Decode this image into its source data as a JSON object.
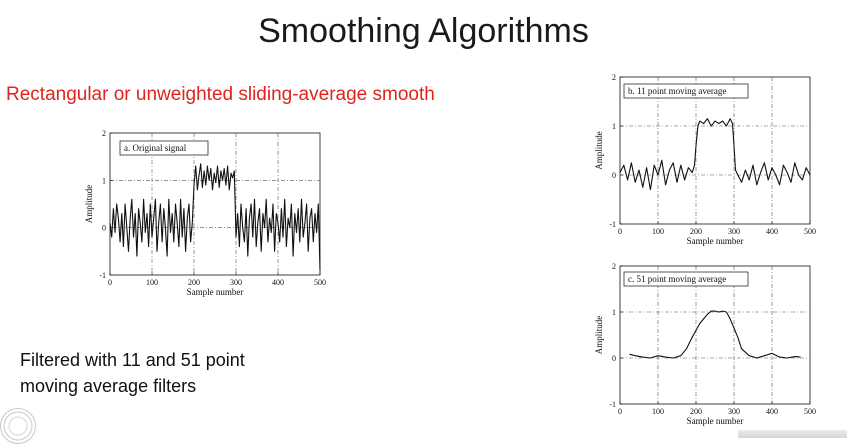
{
  "slide": {
    "title": "Smoothing Algorithms",
    "subtitle": "Rectangular or unweighted sliding-average smooth",
    "caption_lines": [
      "Filtered with 11 and 51 point",
      "moving average filters"
    ]
  },
  "colors": {
    "subtitle": "#e0241d",
    "title": "#1a1a1a",
    "trace": "#111111"
  },
  "chart_data": [
    {
      "type": "line",
      "legend": "a.  Original signal",
      "xlabel": "Sample number",
      "ylabel": "Amplitude",
      "xlim": [
        0,
        500
      ],
      "ylim": [
        -1,
        2
      ],
      "xticks": [
        "0",
        "100",
        "200",
        "300",
        "400",
        "500"
      ],
      "yticks": [
        "-1",
        "0",
        "1",
        "2"
      ],
      "grid": "dashed-dot",
      "series": [
        {
          "x": [
            0,
            4,
            8,
            12,
            16,
            20,
            24,
            28,
            32,
            36,
            40,
            44,
            48,
            52,
            56,
            60,
            64,
            68,
            72,
            76,
            80,
            84,
            88,
            92,
            96,
            100,
            104,
            108,
            112,
            116,
            120,
            124,
            128,
            132,
            136,
            140,
            144,
            148,
            152,
            156,
            160,
            164,
            168,
            172,
            176,
            180,
            184,
            188,
            192,
            196,
            200,
            204,
            208,
            212,
            216,
            220,
            224,
            228,
            232,
            236,
            240,
            244,
            248,
            252,
            256,
            260,
            264,
            268,
            272,
            276,
            280,
            284,
            288,
            292,
            296,
            300,
            304,
            308,
            312,
            316,
            320,
            324,
            328,
            332,
            336,
            340,
            344,
            348,
            352,
            356,
            360,
            364,
            368,
            372,
            376,
            380,
            384,
            388,
            392,
            396,
            400,
            404,
            408,
            412,
            416,
            420,
            424,
            428,
            432,
            436,
            440,
            444,
            448,
            452,
            456,
            460,
            464,
            468,
            472,
            476,
            480,
            484,
            488,
            492,
            496,
            500
          ],
          "y": [
            0.1,
            -0.2,
            0.4,
            -0.1,
            0.5,
            0.2,
            -0.3,
            0.3,
            -0.4,
            0.5,
            0.0,
            -0.5,
            0.2,
            0.6,
            -0.2,
            0.3,
            -0.6,
            0.4,
            0.1,
            -0.3,
            0.6,
            -0.1,
            0.3,
            -0.4,
            0.5,
            -0.2,
            0.2,
            0.6,
            -0.5,
            0.1,
            0.5,
            -0.3,
            0.4,
            0.0,
            -0.6,
            0.6,
            -0.1,
            0.3,
            -0.3,
            0.5,
            0.1,
            -0.4,
            0.6,
            -0.2,
            0.4,
            -0.5,
            0.2,
            0.5,
            -0.3,
            0.1,
            0.9,
            1.3,
            0.8,
            1.1,
            1.35,
            0.85,
            1.2,
            0.9,
            1.3,
            1.0,
            1.25,
            0.8,
            1.15,
            0.95,
            1.3,
            0.85,
            1.2,
            1.0,
            1.25,
            0.9,
            1.3,
            0.8,
            1.15,
            1.05,
            1.2,
            -0.2,
            0.3,
            -0.4,
            0.5,
            0.0,
            -0.3,
            0.4,
            -0.6,
            0.2,
            0.5,
            -0.2,
            0.6,
            -0.4,
            0.1,
            0.4,
            -0.5,
            0.3,
            0.0,
            0.6,
            -0.3,
            0.2,
            -0.1,
            0.5,
            -0.5,
            0.3,
            0.1,
            -0.3,
            0.4,
            -0.2,
            0.6,
            -0.4,
            0.2,
            0.0,
            0.5,
            -0.6,
            0.3,
            -0.1,
            0.4,
            -0.3,
            0.6,
            -0.2,
            0.1,
            0.5,
            -0.5,
            0.2,
            0.4,
            -0.3,
            0.3,
            -0.1,
            0.5,
            -0.9
          ]
        }
      ]
    },
    {
      "type": "line",
      "legend": "b.  11 point moving average",
      "xlabel": "Sample number",
      "ylabel": "Amplitude",
      "xlim": [
        0,
        500
      ],
      "ylim": [
        -1,
        2
      ],
      "xticks": [
        "0",
        "100",
        "200",
        "300",
        "400",
        "500"
      ],
      "yticks": [
        "-1",
        "0",
        "1",
        "2"
      ],
      "grid": "dashed-dot",
      "series": [
        {
          "x": [
            0,
            10,
            20,
            30,
            40,
            50,
            60,
            70,
            80,
            90,
            100,
            110,
            120,
            130,
            140,
            150,
            160,
            170,
            180,
            190,
            196,
            200,
            205,
            210,
            220,
            230,
            240,
            250,
            260,
            270,
            280,
            290,
            296,
            300,
            304,
            310,
            320,
            330,
            340,
            350,
            360,
            370,
            380,
            390,
            400,
            410,
            420,
            430,
            440,
            450,
            460,
            470,
            480,
            490,
            500
          ],
          "y": [
            0.05,
            0.2,
            -0.1,
            0.25,
            -0.15,
            0.1,
            -0.25,
            0.15,
            -0.3,
            0.2,
            0.0,
            0.3,
            -0.2,
            0.1,
            0.25,
            -0.15,
            0.2,
            -0.1,
            0.15,
            0.05,
            0.2,
            0.6,
            1.0,
            1.1,
            1.05,
            1.15,
            1.0,
            1.1,
            1.05,
            1.1,
            1.0,
            1.15,
            1.05,
            0.6,
            0.1,
            0.0,
            -0.15,
            0.1,
            -0.1,
            0.2,
            -0.2,
            0.05,
            0.25,
            -0.1,
            0.15,
            0.0,
            -0.2,
            0.2,
            0.05,
            -0.15,
            0.25,
            0.0,
            -0.1,
            0.15,
            0.0
          ]
        }
      ]
    },
    {
      "type": "line",
      "legend": "c.  51 point moving average",
      "xlabel": "Sample number",
      "ylabel": "Amplitude",
      "xlim": [
        0,
        500
      ],
      "ylim": [
        -1,
        2
      ],
      "xticks": [
        "0",
        "100",
        "200",
        "300",
        "400",
        "500"
      ],
      "yticks": [
        "-1",
        "0",
        "1",
        "2"
      ],
      "grid": "dashed-dot",
      "series": [
        {
          "x": [
            25,
            40,
            60,
            80,
            100,
            120,
            140,
            160,
            175,
            190,
            200,
            210,
            220,
            230,
            240,
            250,
            260,
            270,
            280,
            290,
            300,
            310,
            320,
            340,
            360,
            380,
            400,
            420,
            440,
            460,
            475
          ],
          "y": [
            0.08,
            0.05,
            0.02,
            0.0,
            0.05,
            0.02,
            0.0,
            0.05,
            0.2,
            0.45,
            0.6,
            0.75,
            0.85,
            0.95,
            1.02,
            1.02,
            1.0,
            1.02,
            1.0,
            0.85,
            0.65,
            0.45,
            0.2,
            0.05,
            0.0,
            0.05,
            0.1,
            0.02,
            0.0,
            0.03,
            0.02
          ]
        }
      ]
    }
  ]
}
